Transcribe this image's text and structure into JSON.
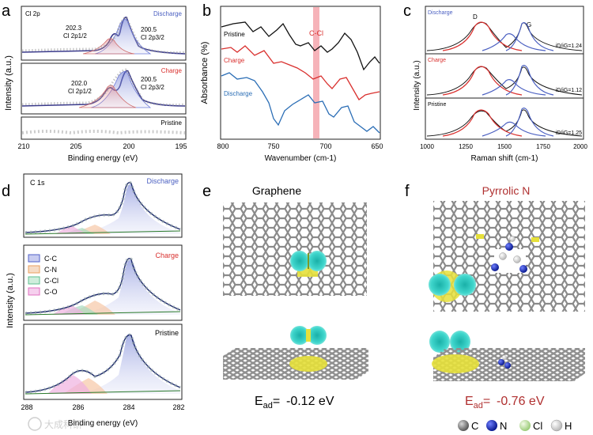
{
  "panels": {
    "a": {
      "label": "a",
      "element": "Cl 2p",
      "ylabel": "Intensity (a.u.)",
      "xlabel": "Binding energy (eV)",
      "xticks": [
        "210",
        "205",
        "200",
        "195"
      ],
      "states": [
        "Discharge",
        "Charge",
        "Pristine"
      ],
      "peaks_discharge": [
        {
          "pos": "202.3",
          "name": "Cl 2p1/2"
        },
        {
          "pos": "200.5",
          "name": "Cl 2p3/2"
        }
      ],
      "peaks_charge": [
        {
          "pos": "202.0",
          "name": "Cl 2p1/2"
        },
        {
          "pos": "200.5",
          "name": "Cl 2p3/2"
        }
      ]
    },
    "b": {
      "label": "b",
      "ylabel": "Absorbance (%)",
      "xlabel": "Wavenumber (cm-1)",
      "xticks": [
        "800",
        "750",
        "700",
        "650"
      ],
      "annotation": "C-Cl",
      "series": [
        "Pristine",
        "Charge",
        "Discharge"
      ]
    },
    "c": {
      "label": "c",
      "ylabel": "Intensity (a.u.)",
      "xlabel": "Raman shift (cm-1)",
      "xticks": [
        "1000",
        "1250",
        "1500",
        "1750",
        "2000"
      ],
      "band_d": "D",
      "band_g": "G",
      "states": [
        "Discharge",
        "Charge",
        "Pristine"
      ],
      "ratios": [
        "iD/iG=1.24",
        "iD/iG=1.12",
        "iD/iG=1.25"
      ]
    },
    "d": {
      "label": "d",
      "element": "C 1s",
      "ylabel": "Intensity (a.u.)",
      "xlabel": "Binding energy (eV)",
      "xticks": [
        "288",
        "286",
        "284",
        "282"
      ],
      "states": [
        "Discharge",
        "Charge",
        "Pristine"
      ],
      "legend": [
        "C-C",
        "C-N",
        "C-Cl",
        "C-O"
      ]
    },
    "e": {
      "label": "e",
      "title": "Graphene",
      "energy": "-0.12 eV"
    },
    "f": {
      "label": "f",
      "title": "Pyrrolic N",
      "energy": "-0.76 eV"
    }
  },
  "atom_legend": [
    "C",
    "N",
    "Cl",
    "H"
  ],
  "watermark": "大成科研",
  "colors": {
    "discharge": "#4a5fc1",
    "charge": "#d9302e",
    "pristine": "#111111",
    "ccl_band": "#f4a6ad",
    "cc": "#5060c8",
    "cn": "#e8a060",
    "cclfit": "#5fbf8f",
    "co": "#e070c0",
    "carbon": "#7a7a7a",
    "nitrogen": "#1d2fc0",
    "chlorine": "#c8e6a0",
    "hydrogen": "#eeeeee",
    "iso_cyan": "#3fd6cc",
    "iso_yellow": "#e6e03a"
  }
}
